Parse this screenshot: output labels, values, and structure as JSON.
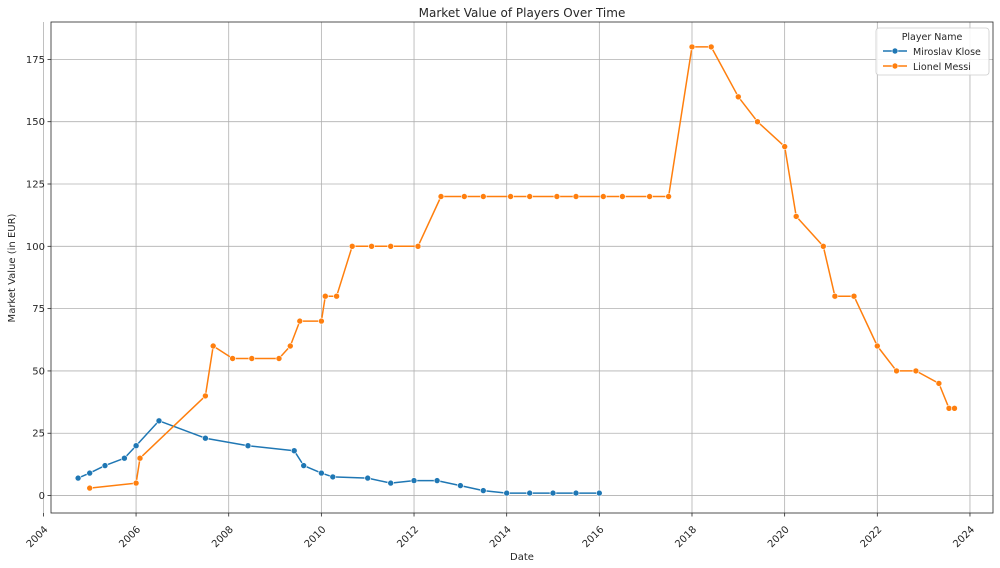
{
  "chart_data": {
    "type": "line",
    "title": "Market Value of Players Over Time",
    "xlabel": "Date",
    "ylabel": "Market Value (in EUR)",
    "xlim": [
      "2004-03-01",
      "2024-07-01"
    ],
    "ylim": [
      -7,
      190
    ],
    "x_ticks": [
      "2004",
      "2006",
      "2008",
      "2010",
      "2012",
      "2014",
      "2016",
      "2018",
      "2020",
      "2022",
      "2024"
    ],
    "y_ticks": [
      0,
      25,
      50,
      75,
      100,
      125,
      150,
      175
    ],
    "grid": true,
    "legend": {
      "title": "Player Name",
      "placement": "top-right"
    },
    "series": [
      {
        "name": "Miroslav Klose",
        "color": "#1f77b4",
        "x": [
          "2004-10-01",
          "2005-01-01",
          "2005-05-01",
          "2005-10-01",
          "2006-01-01",
          "2006-07-01",
          "2007-07-01",
          "2008-06-01",
          "2009-06-01",
          "2009-08-15",
          "2010-01-01",
          "2010-04-01",
          "2011-01-01",
          "2011-07-01",
          "2012-01-01",
          "2012-07-01",
          "2013-01-01",
          "2013-07-01",
          "2014-01-01",
          "2014-07-01",
          "2015-01-01",
          "2015-07-01",
          "2016-01-01"
        ],
        "y": [
          7,
          9,
          12,
          15,
          20,
          30,
          23,
          20,
          18,
          12,
          9,
          7.5,
          7,
          5,
          6,
          6,
          4,
          2,
          1,
          1,
          1,
          1,
          1
        ]
      },
      {
        "name": "Lionel Messi",
        "color": "#ff7f0e",
        "x": [
          "2005-01-01",
          "2006-01-01",
          "2006-02-01",
          "2007-07-01",
          "2007-09-01",
          "2008-02-01",
          "2008-07-01",
          "2009-02-01",
          "2009-05-01",
          "2009-07-15",
          "2010-01-01",
          "2010-02-01",
          "2010-05-01",
          "2010-09-01",
          "2011-02-01",
          "2011-07-01",
          "2012-02-01",
          "2012-08-01",
          "2013-02-01",
          "2013-07-01",
          "2014-02-01",
          "2014-07-01",
          "2015-02-01",
          "2015-07-01",
          "2016-02-01",
          "2016-07-01",
          "2017-02-01",
          "2017-07-01",
          "2018-01-01",
          "2018-06-01",
          "2019-01-01",
          "2019-06-01",
          "2020-01-01",
          "2020-04-01",
          "2020-11-01",
          "2021-02-01",
          "2021-07-01",
          "2022-01-01",
          "2022-06-01",
          "2022-11-01",
          "2023-05-01",
          "2023-07-20",
          "2023-09-01"
        ],
        "y": [
          3,
          5,
          15,
          40,
          60,
          55,
          55,
          55,
          60,
          70,
          70,
          80,
          80,
          100,
          100,
          100,
          100,
          120,
          120,
          120,
          120,
          120,
          120,
          120,
          120,
          120,
          120,
          120,
          180,
          180,
          160,
          150,
          140,
          112,
          100,
          80,
          80,
          60,
          50,
          50,
          45,
          35,
          35
        ]
      }
    ]
  }
}
